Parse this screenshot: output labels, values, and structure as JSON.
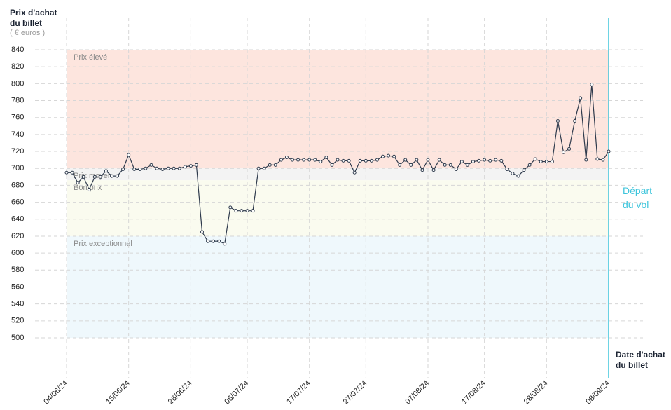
{
  "chart_data": {
    "type": "line",
    "y_label": "Prix d'achat du billet",
    "y_unit": "( € euros )",
    "x_label": "Date d'achat du billet",
    "annotation": "Départ du vol",
    "x": [
      "2024-06-04",
      "2024-06-05",
      "2024-06-06",
      "2024-06-07",
      "2024-06-08",
      "2024-06-09",
      "2024-06-10",
      "2024-06-11",
      "2024-06-12",
      "2024-06-13",
      "2024-06-14",
      "2024-06-15",
      "2024-06-16",
      "2024-06-17",
      "2024-06-18",
      "2024-06-19",
      "2024-06-20",
      "2024-06-21",
      "2024-06-22",
      "2024-06-23",
      "2024-06-24",
      "2024-06-25",
      "2024-06-26",
      "2024-06-27",
      "2024-06-28",
      "2024-06-29",
      "2024-06-30",
      "2024-07-01",
      "2024-07-02",
      "2024-07-03",
      "2024-07-04",
      "2024-07-05",
      "2024-07-06",
      "2024-07-07",
      "2024-07-08",
      "2024-07-09",
      "2024-07-10",
      "2024-07-11",
      "2024-07-12",
      "2024-07-13",
      "2024-07-14",
      "2024-07-15",
      "2024-07-16",
      "2024-07-17",
      "2024-07-18",
      "2024-07-19",
      "2024-07-20",
      "2024-07-21",
      "2024-07-22",
      "2024-07-23",
      "2024-07-24",
      "2024-07-25",
      "2024-07-26",
      "2024-07-27",
      "2024-07-28",
      "2024-07-29",
      "2024-07-30",
      "2024-07-31",
      "2024-08-01",
      "2024-08-02",
      "2024-08-03",
      "2024-08-04",
      "2024-08-05",
      "2024-08-06",
      "2024-08-07",
      "2024-08-08",
      "2024-08-09",
      "2024-08-10",
      "2024-08-11",
      "2024-08-12",
      "2024-08-13",
      "2024-08-14",
      "2024-08-15",
      "2024-08-16",
      "2024-08-17",
      "2024-08-18",
      "2024-08-19",
      "2024-08-20",
      "2024-08-21",
      "2024-08-22",
      "2024-08-23",
      "2024-08-24",
      "2024-08-25",
      "2024-08-26",
      "2024-08-27",
      "2024-08-28",
      "2024-08-29",
      "2024-08-30",
      "2024-08-31",
      "2024-09-01",
      "2024-09-02",
      "2024-09-03",
      "2024-09-04",
      "2024-09-05",
      "2024-09-06",
      "2024-09-07",
      "2024-09-08"
    ],
    "series": [
      {
        "name": "Prix",
        "color": "#2e3a4c",
        "values": [
          695,
          695,
          683,
          690,
          675,
          690,
          690,
          697,
          691,
          691,
          699,
          716,
          699,
          699,
          700,
          704,
          700,
          699,
          700,
          700,
          700,
          702,
          703,
          704,
          625,
          614,
          614,
          614,
          611,
          654,
          650,
          650,
          650,
          650,
          700,
          700,
          704,
          704,
          710,
          713,
          710,
          710,
          710,
          710,
          710,
          708,
          713,
          704,
          710,
          709,
          709,
          695,
          709,
          709,
          709,
          710,
          714,
          715,
          714,
          704,
          710,
          704,
          710,
          698,
          710,
          698,
          710,
          704,
          704,
          699,
          708,
          704,
          708,
          709,
          710,
          709,
          710,
          709,
          699,
          694,
          691,
          698,
          704,
          711,
          708,
          708,
          708,
          756,
          719,
          723,
          756,
          783,
          710,
          799,
          711,
          710,
          720
        ]
      }
    ],
    "xlim": [
      "2024-06-04",
      "2024-09-08"
    ],
    "xticks": [
      {
        "value": "2024-06-04",
        "label": "04/06/24"
      },
      {
        "value": "2024-06-15",
        "label": "15/06/24"
      },
      {
        "value": "2024-06-26",
        "label": "26/06/24"
      },
      {
        "value": "2024-07-06",
        "label": "06/07/24"
      },
      {
        "value": "2024-07-17",
        "label": "17/07/24"
      },
      {
        "value": "2024-07-27",
        "label": "27/07/24"
      },
      {
        "value": "2024-08-07",
        "label": "07/08/24"
      },
      {
        "value": "2024-08-17",
        "label": "17/08/24"
      },
      {
        "value": "2024-08-28",
        "label": "28/08/24"
      },
      {
        "value": "2024-09-08",
        "label": "08/09/24"
      }
    ],
    "ylim": [
      500,
      840
    ],
    "yticks": [
      500,
      520,
      540,
      560,
      580,
      600,
      620,
      640,
      660,
      680,
      700,
      720,
      740,
      760,
      780,
      800,
      820,
      840
    ],
    "grid": true,
    "bands": [
      {
        "label": "Prix élevé",
        "from": 700,
        "to": 840,
        "color": "#fde5de"
      },
      {
        "label": "Prix moyen",
        "from": 686,
        "to": 700,
        "color": "#f3f3f3"
      },
      {
        "label": "Bon prix",
        "from": 620,
        "to": 686,
        "color": "#fafbef"
      },
      {
        "label": "Prix exceptionnel",
        "from": 500,
        "to": 620,
        "color": "#eff8fc"
      }
    ],
    "annotation_color": "#3ec5dc"
  }
}
